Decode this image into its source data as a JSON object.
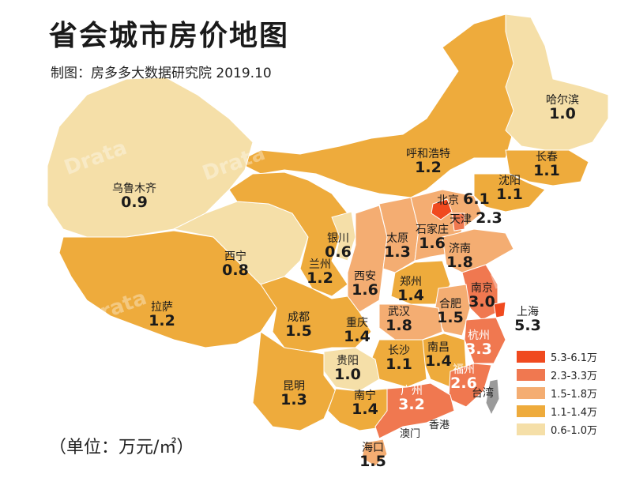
{
  "title": "省会城市房价地图",
  "subtitle": "制图：房多多大数据研究院 2019.10",
  "unit": "（单位：万元/㎡）",
  "colors": {
    "tier1": "#f04a1f",
    "tier2": "#f07850",
    "tier3": "#f4ad72",
    "tier4": "#eeab3c",
    "tier5": "#f5dfa8"
  },
  "legend": [
    {
      "label": "5.3-6.1万",
      "color": "#f04a1f"
    },
    {
      "label": "2.3-3.3万",
      "color": "#f07850"
    },
    {
      "label": "1.5-1.8万",
      "color": "#f4ad72"
    },
    {
      "label": "1.1-1.4万",
      "color": "#eeab3c"
    },
    {
      "label": "0.6-1.0万",
      "color": "#f5dfa8"
    }
  ],
  "cities": [
    {
      "name": "哈尔滨",
      "value": "1.0"
    },
    {
      "name": "长春",
      "value": "1.1"
    },
    {
      "name": "沈阳",
      "value": "1.1"
    },
    {
      "name": "呼和浩特",
      "value": "1.2"
    },
    {
      "name": "北京",
      "value": "6.1"
    },
    {
      "name": "天津",
      "value": "2.3"
    },
    {
      "name": "乌鲁木齐",
      "value": "0.9"
    },
    {
      "name": "银川",
      "value": "0.6"
    },
    {
      "name": "太原",
      "value": "1.3"
    },
    {
      "name": "石家庄",
      "value": "1.6"
    },
    {
      "name": "济南",
      "value": "1.8"
    },
    {
      "name": "西宁",
      "value": "0.8"
    },
    {
      "name": "兰州",
      "value": "1.2"
    },
    {
      "name": "西安",
      "value": "1.6"
    },
    {
      "name": "郑州",
      "value": "1.4"
    },
    {
      "name": "南京",
      "value": "3.0"
    },
    {
      "name": "拉萨",
      "value": "1.2"
    },
    {
      "name": "成都",
      "value": "1.5"
    },
    {
      "name": "重庆",
      "value": "1.4"
    },
    {
      "name": "武汉",
      "value": "1.8"
    },
    {
      "name": "合肥",
      "value": "1.5"
    },
    {
      "name": "上海",
      "value": "5.3"
    },
    {
      "name": "杭州",
      "value": "3.3"
    },
    {
      "name": "长沙",
      "value": "1.1"
    },
    {
      "name": "南昌",
      "value": "1.4"
    },
    {
      "name": "贵阳",
      "value": "1.0"
    },
    {
      "name": "福州",
      "value": "2.6"
    },
    {
      "name": "昆明",
      "value": "1.3"
    },
    {
      "name": "南宁",
      "value": "1.4"
    },
    {
      "name": "广州",
      "value": "3.2"
    },
    {
      "name": "海口",
      "value": "1.5"
    }
  ],
  "labels": {
    "taiwan": "台湾",
    "hongkong": "香港",
    "macau": "澳门"
  },
  "watermark": "Drata"
}
